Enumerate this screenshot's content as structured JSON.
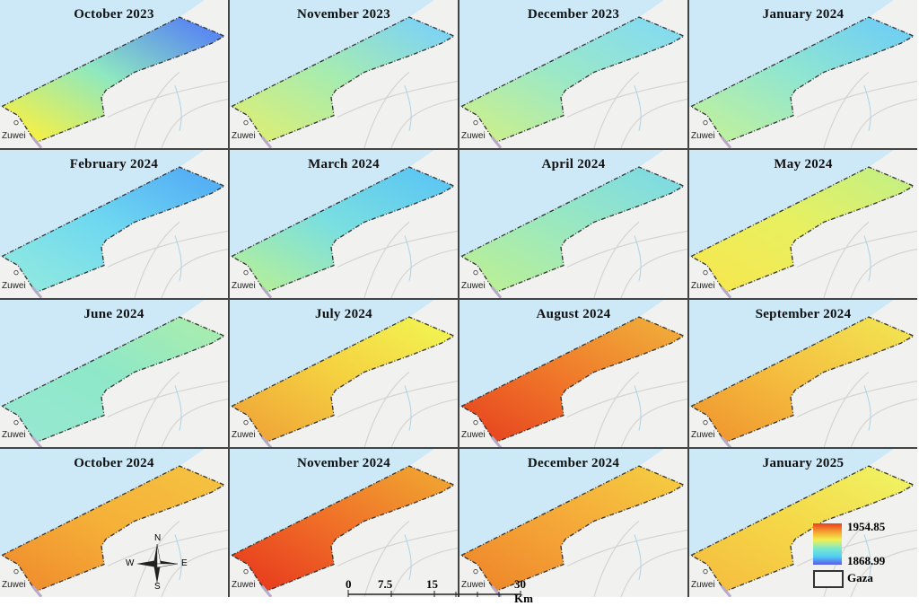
{
  "panels": [
    {
      "title": "October 2023",
      "colors": [
        "#f2f04a",
        "#8ee8c0",
        "#5a8af0"
      ]
    },
    {
      "title": "November 2023",
      "colors": [
        "#d8ee7a",
        "#a6ecb0",
        "#7fd4f2"
      ]
    },
    {
      "title": "December 2023",
      "colors": [
        "#c8ef90",
        "#9ae8c8",
        "#86dcee"
      ]
    },
    {
      "title": "January 2024",
      "colors": [
        "#bdf0a0",
        "#90e6d0",
        "#72d0f2"
      ]
    },
    {
      "title": "February 2024",
      "colors": [
        "#8ee8e0",
        "#6fd8f0",
        "#55b0f5"
      ]
    },
    {
      "title": "March 2024",
      "colors": [
        "#b0ee9e",
        "#7adfe0",
        "#5ec8f2"
      ]
    },
    {
      "title": "April 2024",
      "colors": [
        "#b8ef98",
        "#9ae8c0",
        "#80dce0"
      ]
    },
    {
      "title": "May 2024",
      "colors": [
        "#f5e850",
        "#e8f060",
        "#c8f080"
      ]
    },
    {
      "title": "June 2024",
      "colors": [
        "#96e8d0",
        "#8ee8c8",
        "#a6ecb0"
      ]
    },
    {
      "title": "July 2024",
      "colors": [
        "#f0a838",
        "#f5d040",
        "#f2f050"
      ]
    },
    {
      "title": "August 2024",
      "colors": [
        "#e84a20",
        "#f07a2a",
        "#f0a838"
      ]
    },
    {
      "title": "September 2024",
      "colors": [
        "#f09a30",
        "#f5c040",
        "#f2e050"
      ]
    },
    {
      "title": "October 2024",
      "colors": [
        "#f0902e",
        "#f5b038",
        "#f5c040"
      ]
    },
    {
      "title": "November 2024",
      "colors": [
        "#e8401e",
        "#f07028",
        "#f0a030"
      ]
    },
    {
      "title": "December 2024",
      "colors": [
        "#ef8a2c",
        "#f5a838",
        "#f5c840"
      ]
    },
    {
      "title": "January 2025",
      "colors": [
        "#f5c040",
        "#f5d848",
        "#f0f060"
      ]
    }
  ],
  "town_label": "Zuwei",
  "legend": {
    "max": "1954.85",
    "min": "1868.99",
    "boundary_label": "Gaza"
  },
  "scale_bar": {
    "ticks": [
      "0",
      "7.5",
      "15",
      "30 Km"
    ]
  },
  "compass": {
    "n": "N",
    "s": "S",
    "e": "E",
    "w": "W"
  },
  "colors": {
    "sea": "#cde9f7",
    "land": "#f1f1ef"
  }
}
